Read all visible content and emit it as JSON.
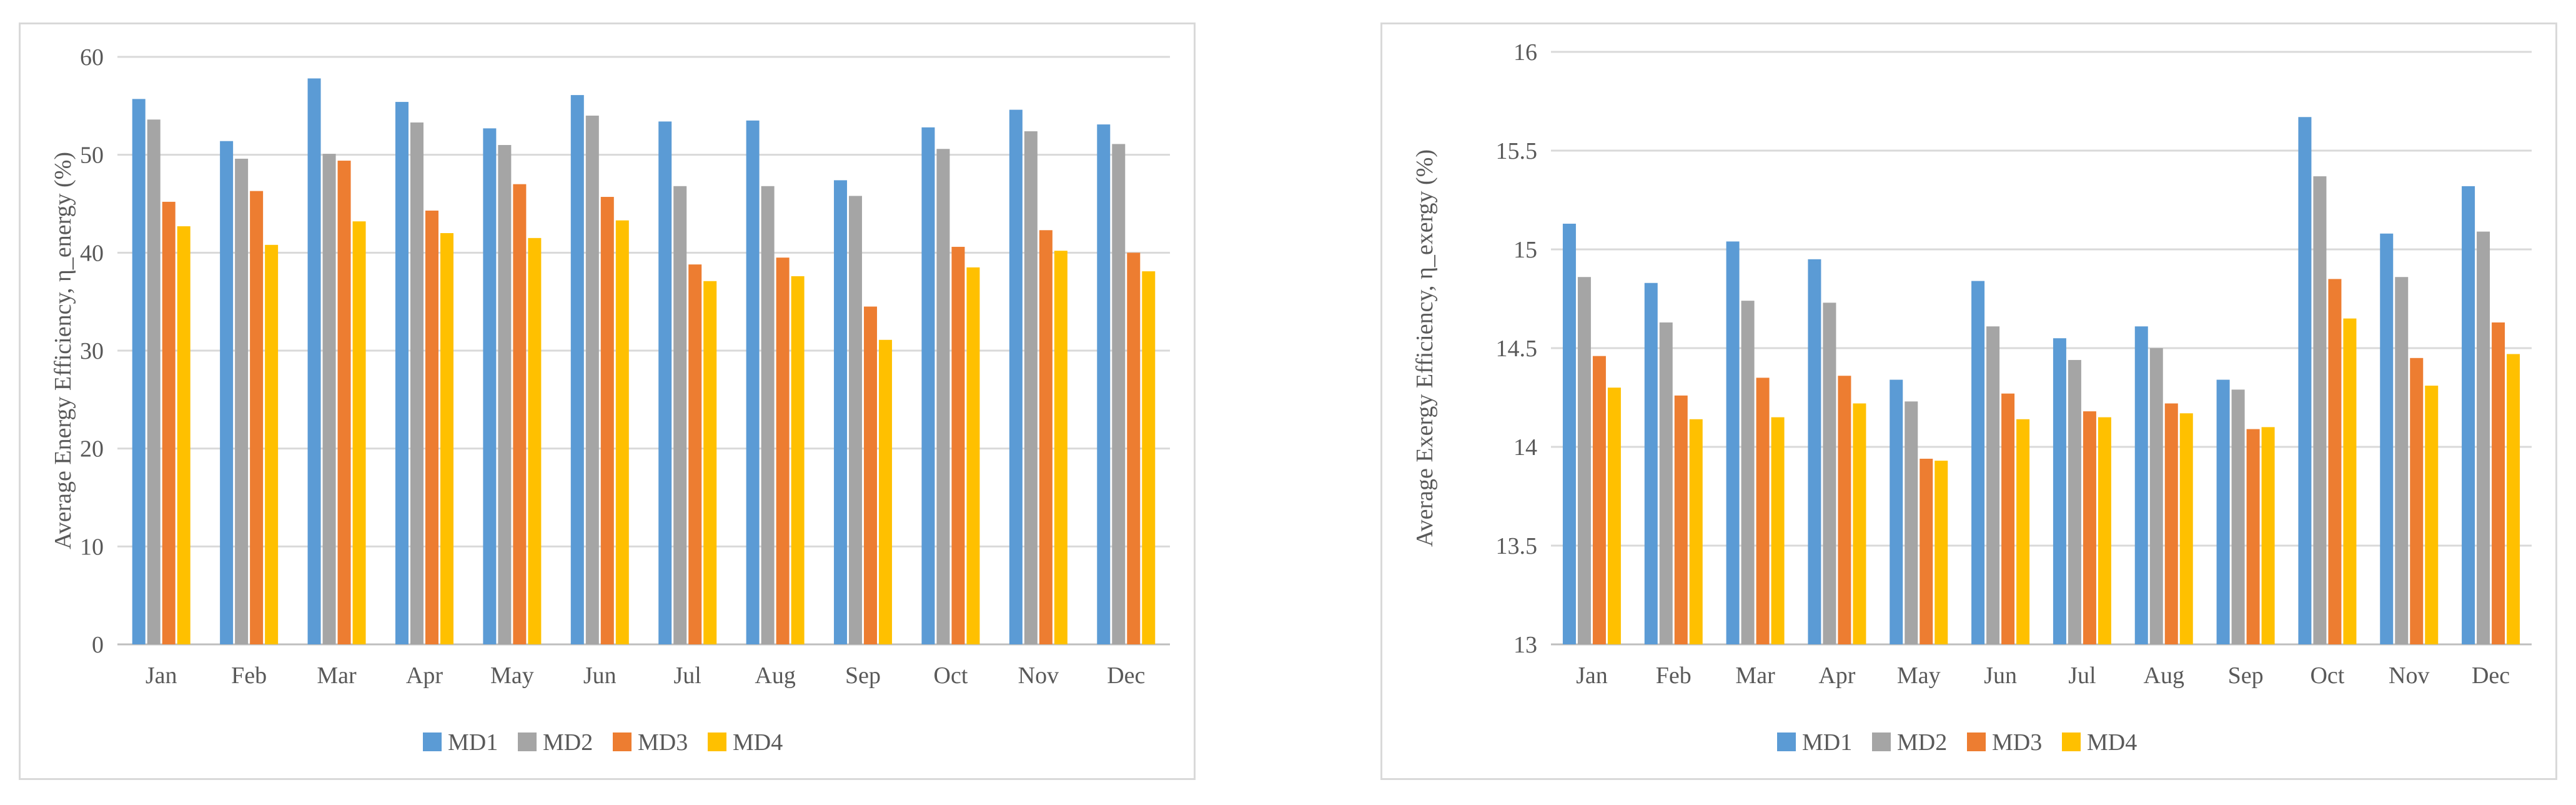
{
  "colors": {
    "MD1": "#5b9bd5",
    "MD2": "#a5a5a5",
    "MD3": "#ed7d31",
    "MD4": "#ffc000",
    "grid": "#d9d9d9",
    "axis": "#bfbfbf",
    "text": "#595959"
  },
  "chart_data": [
    {
      "type": "bar",
      "title": "",
      "xlabel": "",
      "ylabel": "Average Energy Efficiency, η_energy (%)",
      "ylim": [
        0,
        60
      ],
      "yticks": [
        "0",
        "10",
        "20",
        "30",
        "40",
        "50",
        "60"
      ],
      "categories": [
        "Jan",
        "Feb",
        "Mar",
        "Apr",
        "May",
        "Jun",
        "Jul",
        "Aug",
        "Sep",
        "Oct",
        "Nov",
        "Dec"
      ],
      "legend_position": "bottom",
      "series": [
        {
          "name": "MD1",
          "values": [
            55.7,
            51.4,
            57.8,
            55.4,
            52.7,
            56.1,
            53.4,
            53.5,
            47.4,
            52.8,
            54.6,
            53.1
          ]
        },
        {
          "name": "MD2",
          "values": [
            53.6,
            49.6,
            50.1,
            53.3,
            51.0,
            54.0,
            46.8,
            46.8,
            45.8,
            50.6,
            52.4,
            51.1
          ]
        },
        {
          "name": "MD3",
          "values": [
            45.2,
            46.3,
            49.4,
            44.3,
            47.0,
            45.7,
            38.8,
            39.5,
            34.5,
            40.6,
            42.3,
            40.0
          ]
        },
        {
          "name": "MD4",
          "values": [
            42.7,
            40.8,
            43.2,
            42.0,
            41.5,
            43.3,
            37.1,
            37.6,
            31.1,
            38.5,
            40.2,
            38.1
          ]
        }
      ]
    },
    {
      "type": "bar",
      "title": "",
      "xlabel": "",
      "ylabel": "Average Exergy Efficiency, η_exergy (%)",
      "ylim": [
        13,
        16
      ],
      "yticks": [
        "13",
        "13.5",
        "14",
        "14.5",
        "15",
        "15.5",
        "16"
      ],
      "categories": [
        "Jan",
        "Feb",
        "Mar",
        "Apr",
        "May",
        "Jun",
        "Jul",
        "Aug",
        "Sep",
        "Oct",
        "Nov",
        "Dec"
      ],
      "legend_position": "bottom",
      "series": [
        {
          "name": "MD1",
          "values": [
            15.13,
            14.83,
            15.04,
            14.95,
            14.34,
            14.84,
            14.55,
            14.61,
            14.34,
            15.67,
            15.08,
            15.32
          ]
        },
        {
          "name": "MD2",
          "values": [
            14.86,
            14.63,
            14.74,
            14.73,
            14.23,
            14.61,
            14.44,
            14.5,
            14.29,
            15.37,
            14.86,
            15.09
          ]
        },
        {
          "name": "MD3",
          "values": [
            14.46,
            14.26,
            14.35,
            14.36,
            13.94,
            14.27,
            14.18,
            14.22,
            14.09,
            14.85,
            14.45,
            14.63
          ]
        },
        {
          "name": "MD4",
          "values": [
            14.3,
            14.14,
            14.15,
            14.22,
            13.93,
            14.14,
            14.15,
            14.17,
            14.1,
            14.65,
            14.31,
            14.47
          ]
        }
      ]
    }
  ]
}
